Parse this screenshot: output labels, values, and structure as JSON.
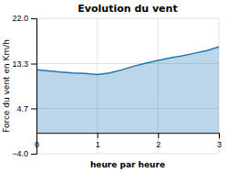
{
  "chart_data": {
    "type": "area",
    "title": "Evolution du vent",
    "x_label": "heure par heure",
    "y_label": "Force du vent en Km/h",
    "x": [
      0.0,
      0.2,
      0.4,
      0.6,
      0.8,
      1.0,
      1.2,
      1.4,
      1.6,
      1.8,
      2.0,
      2.2,
      2.4,
      2.6,
      2.8,
      3.0
    ],
    "values": [
      12.1,
      11.9,
      11.7,
      11.5,
      11.4,
      11.2,
      11.5,
      12.1,
      12.8,
      13.4,
      13.9,
      14.4,
      14.8,
      15.3,
      15.8,
      16.5
    ],
    "baseline": 0.0,
    "xlim": [
      0,
      3
    ],
    "xticks": [
      0,
      1,
      2,
      3
    ],
    "ylim": [
      -4.0,
      22.0
    ],
    "yticks": [
      {
        "value": -4.0,
        "label": "−4.0"
      },
      4.7,
      13.3,
      {
        "value": 22.0,
        "label": "22.0"
      }
    ],
    "grid": true
  }
}
